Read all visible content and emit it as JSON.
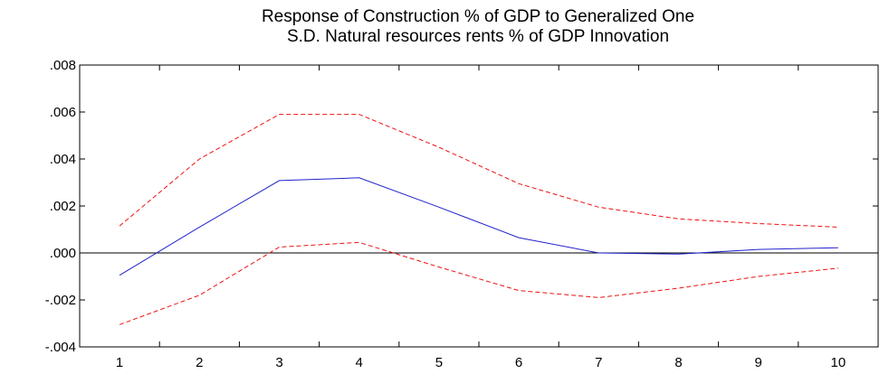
{
  "chart_data": {
    "type": "line",
    "title_lines": [
      "Response of Construction % of GDP to Generalized One",
      "S.D. Natural resources rents % of GDP Innovation"
    ],
    "xlabel": "",
    "ylabel": "",
    "x": [
      1,
      2,
      3,
      4,
      5,
      6,
      7,
      8,
      9,
      10
    ],
    "ylim": [
      -0.004,
      0.008
    ],
    "yticks": [
      {
        "value": 0.008,
        "label": ".008"
      },
      {
        "value": 0.006,
        "label": ".006"
      },
      {
        "value": 0.004,
        "label": ".004"
      },
      {
        "value": 0.002,
        "label": ".002"
      },
      {
        "value": 0.0,
        "label": ".000"
      },
      {
        "value": -0.002,
        "label": "-.002"
      },
      {
        "value": -0.004,
        "label": "-.004"
      }
    ],
    "xticks": [
      "1",
      "2",
      "3",
      "4",
      "5",
      "6",
      "7",
      "8",
      "9",
      "10"
    ],
    "grid": false,
    "zero_line": true,
    "series": [
      {
        "role": "response",
        "style": "solid",
        "color": "#2222cc",
        "values": [
          -0.00095,
          0.0011,
          0.00308,
          0.0032,
          0.00195,
          0.00065,
          0.0,
          -5e-05,
          0.00015,
          0.00022
        ]
      },
      {
        "role": "upper band",
        "style": "dashed",
        "color": "#ee1111",
        "values": [
          0.00115,
          0.004,
          0.0059,
          0.0059,
          0.0045,
          0.00295,
          0.00195,
          0.00145,
          0.00125,
          0.0011
        ]
      },
      {
        "role": "lower band",
        "style": "dashed",
        "color": "#ee1111",
        "values": [
          -0.00305,
          -0.0018,
          0.00025,
          0.00045,
          -0.0006,
          -0.0016,
          -0.0019,
          -0.0015,
          -0.001,
          -0.00065
        ]
      }
    ]
  }
}
